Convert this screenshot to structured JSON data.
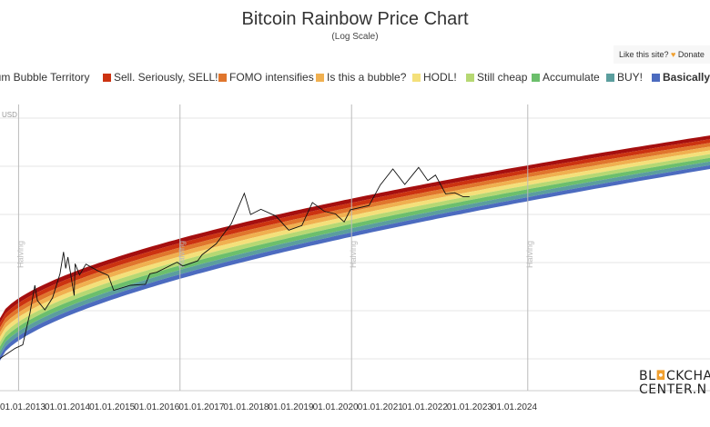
{
  "header": {
    "title": "Bitcoin Rainbow Price Chart",
    "subtitle": "(Log Scale)"
  },
  "donate": {
    "prefix": "Like this site?",
    "label": "Donate"
  },
  "brand": {
    "line1_a": "BL",
    "line1_b": "CKCHA",
    "line2": "CENTER.N"
  },
  "chart_data": {
    "type": "line",
    "title": "Bitcoin Rainbow Price Chart",
    "subtitle": "(Log Scale)",
    "yscale": "log",
    "grid": true,
    "legend_position": "top",
    "y_unit_label_fragment": "USD",
    "bands": [
      {
        "name": "Maximum Bubble Territory",
        "label_visible": "num Bubble Territory",
        "color": "#a50f0f"
      },
      {
        "name": "Sell. Seriously, SELL!",
        "color": "#cc3311"
      },
      {
        "name": "FOMO intensifies",
        "color": "#e0762d"
      },
      {
        "name": "Is this a bubble?",
        "color": "#f0b050"
      },
      {
        "name": "HODL!",
        "color": "#f4e07a"
      },
      {
        "name": "Still cheap",
        "color": "#b6d873"
      },
      {
        "name": "Accumulate",
        "color": "#6cbf6c"
      },
      {
        "name": "BUY!",
        "color": "#5b9e9e"
      },
      {
        "name": "Basically a fire sale",
        "label_visible": "Basically a",
        "color": "#4c6bbf"
      }
    ],
    "x_ticks": [
      "01.01.2013",
      "01.01.2014",
      "01.01.2015",
      "01.01.2016",
      "01.01.2017",
      "01.01.2018",
      "01.01.2019",
      "01.01.2020",
      "01.01.2021",
      "01.01.2022",
      "01.01.2023",
      "01.01.2024"
    ],
    "halvings": [
      {
        "date": "2016-07-09",
        "label": "Halving"
      },
      {
        "date": "2020-05-11",
        "label": "Halving"
      },
      {
        "date": "2024-04-20",
        "label": "Halving"
      }
    ],
    "halving_pre": {
      "date": "2012-11-28",
      "label": "Halving"
    },
    "price_series": {
      "name": "BTC price",
      "color": "#111111",
      "points": [
        [
          "2012-06-01",
          6
        ],
        [
          "2012-11-01",
          11
        ],
        [
          "2013-01-01",
          13
        ],
        [
          "2013-03-01",
          60
        ],
        [
          "2013-04-10",
          230
        ],
        [
          "2013-05-01",
          110
        ],
        [
          "2013-07-01",
          70
        ],
        [
          "2013-09-01",
          125
        ],
        [
          "2013-11-01",
          400
        ],
        [
          "2013-11-30",
          1150
        ],
        [
          "2013-12-18",
          520
        ],
        [
          "2014-01-05",
          900
        ],
        [
          "2014-02-25",
          140
        ],
        [
          "2014-03-05",
          650
        ],
        [
          "2014-04-10",
          380
        ],
        [
          "2014-06-01",
          640
        ],
        [
          "2014-09-01",
          470
        ],
        [
          "2014-12-01",
          370
        ],
        [
          "2015-01-14",
          180
        ],
        [
          "2015-06-01",
          230
        ],
        [
          "2015-10-01",
          240
        ],
        [
          "2015-11-05",
          400
        ],
        [
          "2016-01-01",
          430
        ],
        [
          "2016-06-15",
          700
        ],
        [
          "2016-08-01",
          580
        ],
        [
          "2016-12-01",
          750
        ],
        [
          "2017-01-05",
          1000
        ],
        [
          "2017-05-01",
          1700
        ],
        [
          "2017-09-01",
          4500
        ],
        [
          "2017-12-17",
          19500
        ],
        [
          "2018-02-06",
          7000
        ],
        [
          "2018-05-01",
          9000
        ],
        [
          "2018-09-01",
          6500
        ],
        [
          "2018-12-15",
          3300
        ],
        [
          "2019-04-01",
          4100
        ],
        [
          "2019-06-26",
          12500
        ],
        [
          "2019-10-01",
          8200
        ],
        [
          "2020-01-01",
          7200
        ],
        [
          "2020-03-12",
          4900
        ],
        [
          "2020-05-01",
          8800
        ],
        [
          "2020-10-01",
          10800
        ],
        [
          "2020-12-31",
          29000
        ],
        [
          "2021-04-14",
          63000
        ],
        [
          "2021-07-20",
          30000
        ],
        [
          "2021-11-10",
          68000
        ],
        [
          "2022-01-24",
          36000
        ],
        [
          "2022-03-28",
          47000
        ],
        [
          "2022-06-18",
          19000
        ],
        [
          "2022-09-01",
          20000
        ],
        [
          "2022-11-10",
          16500
        ],
        [
          "2022-12-31",
          16600
        ]
      ]
    }
  }
}
